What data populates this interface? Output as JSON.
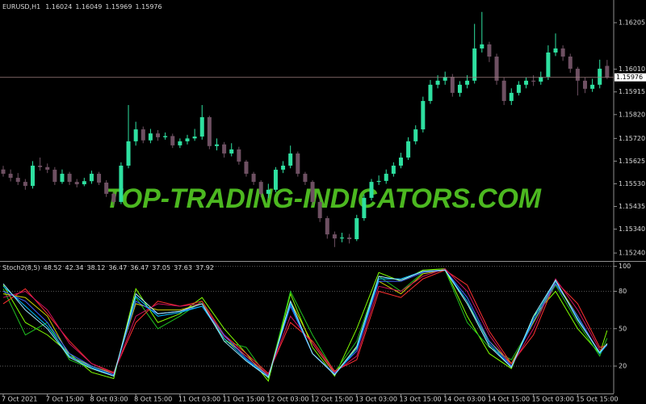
{
  "chart_data": [
    {
      "type": "candlestick",
      "title": "EURUSD,H1",
      "watermark": "TOP-TRADING-INDICATORS.COM",
      "up_color": "#2ee0a0",
      "down_color": "#6e5062",
      "ylim": [
        1.1521,
        1.163
      ],
      "yticks": [
        1.16205,
        {
          "value": 1.1601,
          "label": "1.16010"
        },
        1.15915,
        {
          "value": 1.1582,
          "label": "1.15820"
        },
        {
          "value": 1.1572,
          "label": "1.15720"
        },
        1.15625,
        {
          "value": 1.1553,
          "label": "1.15530"
        },
        1.15435,
        {
          "value": 1.1534,
          "label": "1.15340"
        },
        {
          "value": 1.1524,
          "label": "1.15240"
        }
      ],
      "ohlc": [
        [
          1.1559,
          1.15605,
          1.1556,
          1.15572
        ],
        [
          1.15572,
          1.1559,
          1.1554,
          1.15555
        ],
        [
          1.15555,
          1.15575,
          1.15525,
          1.15538
        ],
        [
          1.15538,
          1.1555,
          1.15505,
          1.15521
        ],
        [
          1.15521,
          1.15625,
          1.1551,
          1.15606
        ],
        [
          1.15606,
          1.1564,
          1.15585,
          1.156
        ],
        [
          1.156,
          1.15615,
          1.15575,
          1.15589
        ],
        [
          1.15589,
          1.156,
          1.15525,
          1.15538
        ],
        [
          1.15538,
          1.1559,
          1.1553,
          1.15572
        ],
        [
          1.15572,
          1.1558,
          1.15525,
          1.15538
        ],
        [
          1.15538,
          1.1555,
          1.15515,
          1.15528
        ],
        [
          1.15528,
          1.15555,
          1.1552,
          1.15541
        ],
        [
          1.15541,
          1.15585,
          1.1553,
          1.15572
        ],
        [
          1.15572,
          1.1558,
          1.15525,
          1.15535
        ],
        [
          1.15535,
          1.15545,
          1.15475,
          1.15488
        ],
        [
          1.15488,
          1.15495,
          1.1544,
          1.15454
        ],
        [
          1.15454,
          1.1562,
          1.15445,
          1.15606
        ],
        [
          1.15606,
          1.1586,
          1.15595,
          1.15708
        ],
        [
          1.15708,
          1.1579,
          1.1569,
          1.15758
        ],
        [
          1.15758,
          1.1577,
          1.157,
          1.15712
        ],
        [
          1.15712,
          1.1576,
          1.157,
          1.15741
        ],
        [
          1.15741,
          1.15755,
          1.1571,
          1.15725
        ],
        [
          1.15725,
          1.15745,
          1.15715,
          1.1573
        ],
        [
          1.1573,
          1.1574,
          1.1568,
          1.15691
        ],
        [
          1.15691,
          1.1572,
          1.1568,
          1.15708
        ],
        [
          1.15708,
          1.15735,
          1.15695,
          1.1572
        ],
        [
          1.1572,
          1.1576,
          1.1571,
          1.15728
        ],
        [
          1.15728,
          1.1586,
          1.15715,
          1.15809
        ],
        [
          1.15809,
          1.15815,
          1.15675,
          1.15688
        ],
        [
          1.15688,
          1.1572,
          1.1567,
          1.15695
        ],
        [
          1.15695,
          1.15705,
          1.1564,
          1.15657
        ],
        [
          1.15657,
          1.157,
          1.15645,
          1.15674
        ],
        [
          1.15674,
          1.15685,
          1.1561,
          1.15623
        ],
        [
          1.15623,
          1.1563,
          1.1556,
          1.15572
        ],
        [
          1.15572,
          1.1558,
          1.15525,
          1.15538
        ],
        [
          1.15538,
          1.15545,
          1.15475,
          1.15488
        ],
        [
          1.15488,
          1.1553,
          1.1547,
          1.15505
        ],
        [
          1.15505,
          1.156,
          1.15495,
          1.15589
        ],
        [
          1.15589,
          1.15625,
          1.15575,
          1.15606
        ],
        [
          1.15606,
          1.1569,
          1.15595,
          1.15657
        ],
        [
          1.15657,
          1.15665,
          1.1556,
          1.15572
        ],
        [
          1.15572,
          1.1558,
          1.15525,
          1.15538
        ],
        [
          1.15538,
          1.15545,
          1.1544,
          1.15454
        ],
        [
          1.15454,
          1.15465,
          1.1537,
          1.15386
        ],
        [
          1.15386,
          1.15395,
          1.153,
          1.15318
        ],
        [
          1.15318,
          1.1533,
          1.15265,
          1.15301
        ],
        [
          1.15301,
          1.15325,
          1.15285,
          1.15305
        ],
        [
          1.15305,
          1.1532,
          1.1528,
          1.15298
        ],
        [
          1.15298,
          1.154,
          1.1529,
          1.15386
        ],
        [
          1.15386,
          1.15485,
          1.15375,
          1.15471
        ],
        [
          1.15471,
          1.1555,
          1.1546,
          1.15538
        ],
        [
          1.15538,
          1.15565,
          1.15525,
          1.15542
        ],
        [
          1.15542,
          1.1559,
          1.1553,
          1.15572
        ],
        [
          1.15572,
          1.1562,
          1.1556,
          1.15606
        ],
        [
          1.15606,
          1.1566,
          1.15595,
          1.1564
        ],
        [
          1.1564,
          1.15725,
          1.1563,
          1.15708
        ],
        [
          1.15708,
          1.15775,
          1.15695,
          1.15758
        ],
        [
          1.15758,
          1.15895,
          1.15745,
          1.15877
        ],
        [
          1.15877,
          1.15965,
          1.15865,
          1.15945
        ],
        [
          1.15945,
          1.15985,
          1.1593,
          1.15962
        ],
        [
          1.15962,
          1.16,
          1.15945,
          1.15978
        ],
        [
          1.15978,
          1.1599,
          1.15895,
          1.15911
        ],
        [
          1.15911,
          1.1596,
          1.15895,
          1.15945
        ],
        [
          1.15945,
          1.15985,
          1.1593,
          1.15962
        ],
        [
          1.15962,
          1.162,
          1.1595,
          1.16097
        ],
        [
          1.16097,
          1.1625,
          1.1608,
          1.16114
        ],
        [
          1.16114,
          1.16125,
          1.1604,
          1.16063
        ],
        [
          1.16063,
          1.16075,
          1.15945,
          1.15962
        ],
        [
          1.15962,
          1.15975,
          1.1586,
          1.15877
        ],
        [
          1.15877,
          1.1593,
          1.1586,
          1.15911
        ],
        [
          1.15911,
          1.1596,
          1.159,
          1.15945
        ],
        [
          1.15945,
          1.15975,
          1.1593,
          1.15962
        ],
        [
          1.15962,
          1.15985,
          1.1594,
          1.15958
        ],
        [
          1.15958,
          1.16,
          1.15945,
          1.15978
        ],
        [
          1.15978,
          1.1611,
          1.15965,
          1.1608
        ],
        [
          1.1608,
          1.1616,
          1.16065,
          1.16097
        ],
        [
          1.16097,
          1.1611,
          1.16045,
          1.16063
        ],
        [
          1.16063,
          1.16075,
          1.15995,
          1.16012
        ],
        [
          1.16012,
          1.1602,
          1.159,
          1.15962
        ],
        [
          1.15962,
          1.15975,
          1.1591,
          1.15928
        ],
        [
          1.15928,
          1.1597,
          1.15915,
          1.15945
        ],
        [
          1.15945,
          1.1605,
          1.1593,
          1.16012
        ],
        [
          1.16024,
          1.16049,
          1.15969,
          1.15976
        ]
      ]
    },
    {
      "type": "line",
      "title": "Stoch2(8,5)",
      "grid": true,
      "ylim": [
        -2,
        103
      ],
      "yticks": [
        100,
        80,
        50,
        20
      ],
      "x": [
        0,
        3,
        6,
        9,
        12,
        15,
        18,
        21,
        24,
        27,
        30,
        33,
        36,
        39,
        42,
        45,
        48,
        51,
        54,
        57,
        60,
        63,
        66,
        69,
        72,
        75,
        78,
        81,
        82
      ],
      "xticks": [
        {
          "value": 0,
          "label": "7 Oct 2021"
        },
        {
          "value": 6,
          "label": "7 Oct 15:00"
        },
        {
          "value": 12,
          "label": "8 Oct 03:00"
        },
        {
          "value": 18,
          "label": "8 Oct 15:00"
        },
        {
          "value": 24,
          "label": "11 Oct 03:00"
        },
        {
          "value": 30,
          "label": "11 Oct 15:00"
        },
        {
          "value": 36,
          "label": "12 Oct 03:00"
        },
        {
          "value": 42,
          "label": "12 Oct 15:00"
        },
        {
          "value": 48,
          "label": "13 Oct 03:00"
        },
        {
          "value": 54,
          "label": "13 Oct 15:00"
        },
        {
          "value": 60,
          "label": "14 Oct 03:00"
        },
        {
          "value": 66,
          "label": "14 Oct 15:00"
        },
        {
          "value": 72,
          "label": "15 Oct 03:00"
        },
        {
          "value": 78,
          "label": "15 Oct 15:00"
        }
      ],
      "series": [
        {
          "color": "#80ff00",
          "values": [
            85,
            55,
            45,
            30,
            15,
            10,
            82,
            55,
            62,
            75,
            50,
            30,
            8,
            78,
            35,
            12,
            50,
            95,
            88,
            97,
            98,
            60,
            30,
            18,
            60,
            80,
            50,
            30,
            48.52
          ]
        },
        {
          "color": "#20c020",
          "values": [
            82,
            45,
            55,
            25,
            18,
            12,
            75,
            50,
            60,
            72,
            40,
            35,
            10,
            80,
            45,
            15,
            40,
            92,
            80,
            95,
            97,
            55,
            35,
            25,
            55,
            85,
            55,
            28,
            42.34
          ]
        },
        {
          "color": "#d0d000",
          "values": [
            78,
            75,
            60,
            28,
            20,
            14,
            70,
            65,
            65,
            70,
            42,
            28,
            12,
            72,
            38,
            14,
            35,
            88,
            78,
            94,
            97,
            70,
            40,
            22,
            55,
            88,
            60,
            30,
            38.12
          ]
        },
        {
          "color": "#ff3030",
          "values": [
            70,
            82,
            62,
            40,
            22,
            15,
            55,
            72,
            68,
            72,
            45,
            30,
            14,
            55,
            40,
            16,
            25,
            80,
            75,
            90,
            97,
            85,
            48,
            22,
            45,
            88,
            70,
            35,
            36.47
          ]
        },
        {
          "color": "#d01060",
          "values": [
            75,
            80,
            65,
            38,
            22,
            14,
            60,
            70,
            68,
            70,
            44,
            28,
            13,
            60,
            38,
            15,
            28,
            84,
            80,
            92,
            98,
            80,
            45,
            20,
            50,
            90,
            65,
            33,
            36.47
          ]
        },
        {
          "color": "#4060ff",
          "values": [
            80,
            72,
            55,
            30,
            20,
            13,
            72,
            62,
            64,
            68,
            45,
            26,
            12,
            68,
            30,
            14,
            32,
            88,
            88,
            95,
            97,
            75,
            40,
            20,
            56,
            86,
            60,
            30,
            37.05
          ]
        },
        {
          "color": "#00c0ff",
          "values": [
            84,
            68,
            52,
            28,
            19,
            12,
            76,
            60,
            63,
            68,
            42,
            25,
            11,
            70,
            30,
            13,
            34,
            90,
            90,
            96,
            97,
            72,
            38,
            19,
            58,
            88,
            58,
            30,
            37.63
          ]
        },
        {
          "color": "#a0e8ff",
          "values": [
            86,
            65,
            50,
            27,
            18,
            12,
            78,
            62,
            64,
            70,
            40,
            24,
            11,
            72,
            30,
            13,
            36,
            92,
            89,
            96,
            97,
            70,
            36,
            19,
            60,
            89,
            57,
            31,
            37.92
          ]
        }
      ]
    }
  ]
}
